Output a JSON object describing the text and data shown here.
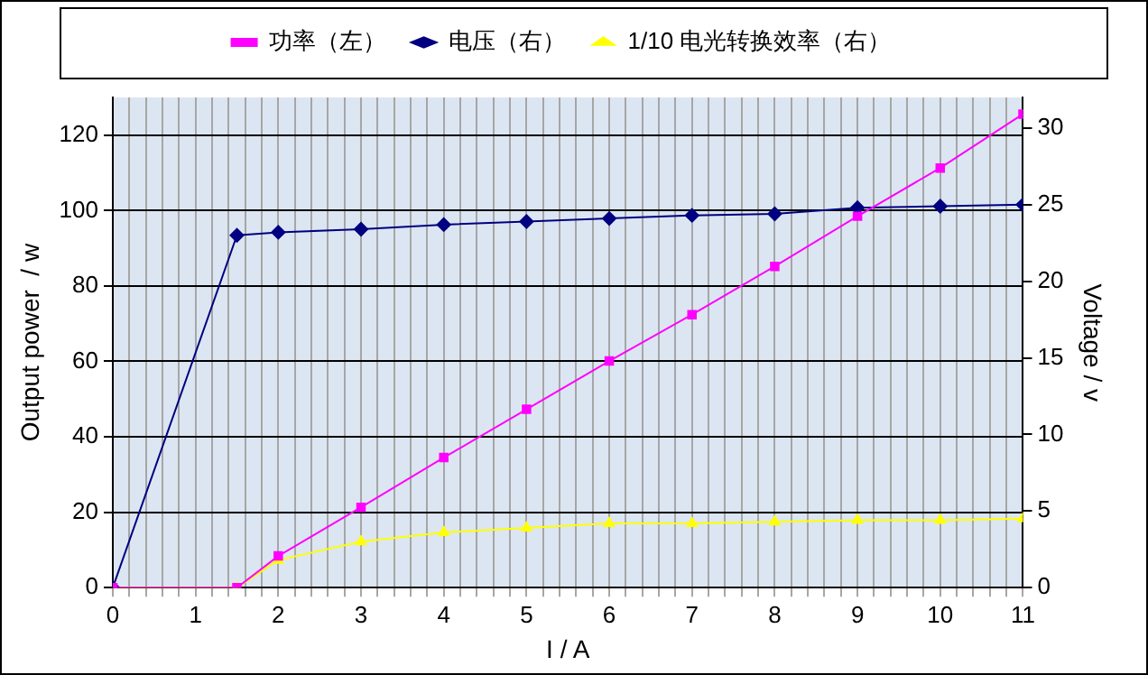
{
  "chart_data": {
    "type": "line",
    "xlabel": "I / A",
    "ylabel": "Output power  / w",
    "y2label": "Voltage / v",
    "x": [
      0,
      1.5,
      2,
      3,
      4,
      5,
      6,
      7,
      8,
      9,
      10,
      11
    ],
    "xlim": [
      0,
      11
    ],
    "xticks": [
      0,
      {
        "value": 0.2,
        "label": null
      },
      {
        "value": 0.4,
        "label": null
      },
      {
        "value": 0.6,
        "label": null
      },
      {
        "value": 0.8,
        "label": null
      },
      1,
      {
        "value": 1.2,
        "label": null
      },
      {
        "value": 1.4,
        "label": null
      },
      {
        "value": 1.6,
        "label": null
      },
      {
        "value": 1.8,
        "label": null
      },
      2,
      {
        "value": 2.2,
        "label": null
      },
      {
        "value": 2.4,
        "label": null
      },
      {
        "value": 2.6,
        "label": null
      },
      {
        "value": 2.8,
        "label": null
      },
      3,
      {
        "value": 3.2,
        "label": null
      },
      {
        "value": 3.4,
        "label": null
      },
      {
        "value": 3.6,
        "label": null
      },
      {
        "value": 3.8,
        "label": null
      },
      4,
      {
        "value": 4.2,
        "label": null
      },
      {
        "value": 4.4,
        "label": null
      },
      {
        "value": 4.6,
        "label": null
      },
      {
        "value": 4.8,
        "label": null
      },
      5,
      {
        "value": 5.2,
        "label": null
      },
      {
        "value": 5.4,
        "label": null
      },
      {
        "value": 5.6,
        "label": null
      },
      {
        "value": 5.8,
        "label": null
      },
      6,
      {
        "value": 6.2,
        "label": null
      },
      {
        "value": 6.4,
        "label": null
      },
      {
        "value": 6.6,
        "label": null
      },
      {
        "value": 6.8,
        "label": null
      },
      7,
      {
        "value": 7.2,
        "label": null
      },
      {
        "value": 7.4,
        "label": null
      },
      {
        "value": 7.6,
        "label": null
      },
      {
        "value": 7.8,
        "label": null
      },
      8,
      {
        "value": 8.2,
        "label": null
      },
      {
        "value": 8.4,
        "label": null
      },
      {
        "value": 8.6,
        "label": null
      },
      {
        "value": 8.8,
        "label": null
      },
      9,
      {
        "value": 9.2,
        "label": null
      },
      {
        "value": 9.4,
        "label": null
      },
      {
        "value": 9.6,
        "label": null
      },
      {
        "value": 9.8,
        "label": null
      },
      10,
      {
        "value": 10.2,
        "label": null
      },
      {
        "value": 10.4,
        "label": null
      },
      {
        "value": 10.6,
        "label": null
      },
      {
        "value": 10.8,
        "label": null
      },
      11
    ],
    "ylim": [
      0,
      130
    ],
    "yticks": [
      0,
      20,
      40,
      60,
      80,
      100,
      120
    ],
    "y2lim": [
      0,
      32
    ],
    "y2ticks": [
      0,
      5,
      10,
      15,
      20,
      25,
      30
    ],
    "grid": true,
    "legend": "top",
    "series": [
      {
        "name": "功率（左）",
        "color": "#ff00ff",
        "marker": "square",
        "values": [
          0,
          0,
          8.4,
          21.3,
          34.5,
          47.3,
          60.1,
          72.4,
          85.2,
          98.5,
          111.3,
          125.6
        ]
      },
      {
        "name": "电压（右）",
        "color": "#000080",
        "marker": "diamond",
        "axis": "y2",
        "values": [
          0,
          23.0,
          23.2,
          23.4,
          23.7,
          23.9,
          24.1,
          24.3,
          24.4,
          24.8,
          24.9,
          25.0
        ]
      },
      {
        "name": "1/10 电光转换效率（右）",
        "color": "#ffff00",
        "marker": "triangle",
        "axis": "y2",
        "values": [
          0,
          0,
          1.8,
          3.0,
          3.6,
          3.9,
          4.2,
          4.2,
          4.3,
          4.4,
          4.4,
          4.5
        ]
      }
    ]
  }
}
